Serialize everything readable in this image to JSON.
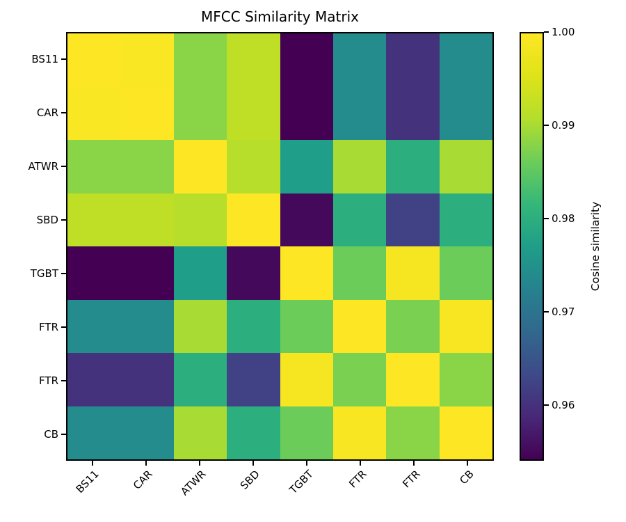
{
  "title": "MFCC Similarity Matrix",
  "chart_data": {
    "type": "heatmap",
    "title": "MFCC Similarity Matrix",
    "x_labels": [
      "BS11",
      "CAR",
      "ATWR",
      "SBD",
      "TGBT",
      "FTR",
      "FTR",
      "CB"
    ],
    "y_labels": [
      "BS11",
      "CAR",
      "ATWR",
      "SBD",
      "TGBT",
      "FTR",
      "FTR",
      "CB"
    ],
    "matrix": [
      [
        1.0,
        0.9995,
        0.988,
        0.992,
        0.954,
        0.974,
        0.96,
        0.974
      ],
      [
        0.9995,
        1.0,
        0.988,
        0.992,
        0.954,
        0.974,
        0.96,
        0.974
      ],
      [
        0.988,
        0.988,
        1.0,
        0.991,
        0.977,
        0.99,
        0.98,
        0.99
      ],
      [
        0.992,
        0.992,
        0.991,
        1.0,
        0.955,
        0.98,
        0.962,
        0.98
      ],
      [
        0.954,
        0.954,
        0.977,
        0.955,
        1.0,
        0.986,
        0.999,
        0.986
      ],
      [
        0.974,
        0.974,
        0.99,
        0.98,
        0.986,
        1.0,
        0.987,
        0.9992
      ],
      [
        0.96,
        0.96,
        0.98,
        0.962,
        0.999,
        0.987,
        1.0,
        0.988
      ],
      [
        0.974,
        0.974,
        0.99,
        0.98,
        0.986,
        0.9992,
        0.988,
        1.0
      ]
    ],
    "colormap": "viridis",
    "vmin": 0.954,
    "vmax": 1.0,
    "x_tick_rotation_deg": 45,
    "grid": false,
    "colorbar": {
      "label": "Cosine similarity",
      "ticks": [
        1.0,
        0.99,
        0.98,
        0.97,
        0.96
      ]
    }
  }
}
